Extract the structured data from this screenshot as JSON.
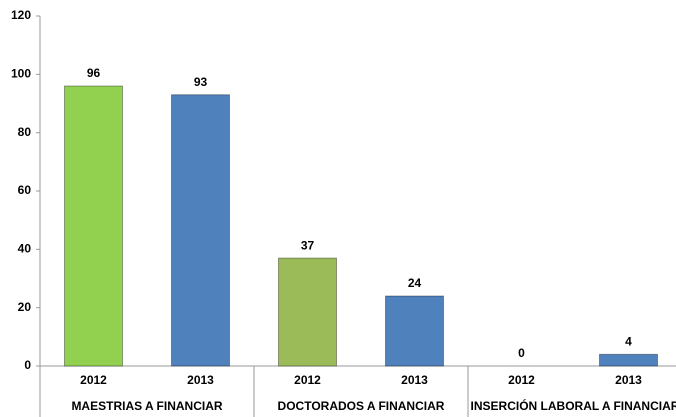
{
  "chart_data": {
    "type": "bar",
    "categories": [
      "2012",
      "2013",
      "2012",
      "2013",
      "2012",
      "2013"
    ],
    "groups": [
      "MAESTRIAS A FINANCIAR",
      "DOCTORADOS A FINANCIAR",
      "INSERCIÓN LABORAL A FINANCIAR"
    ],
    "values": [
      96,
      93,
      37,
      24,
      0,
      4
    ],
    "colors": [
      "#92d050",
      "#4f81bd",
      "#9bbb59",
      "#4f81bd",
      "#9bbb59",
      "#4f81bd"
    ],
    "ylim": [
      0,
      120
    ],
    "yticks": [
      0,
      20,
      40,
      60,
      80,
      100,
      120
    ],
    "grid": false
  }
}
